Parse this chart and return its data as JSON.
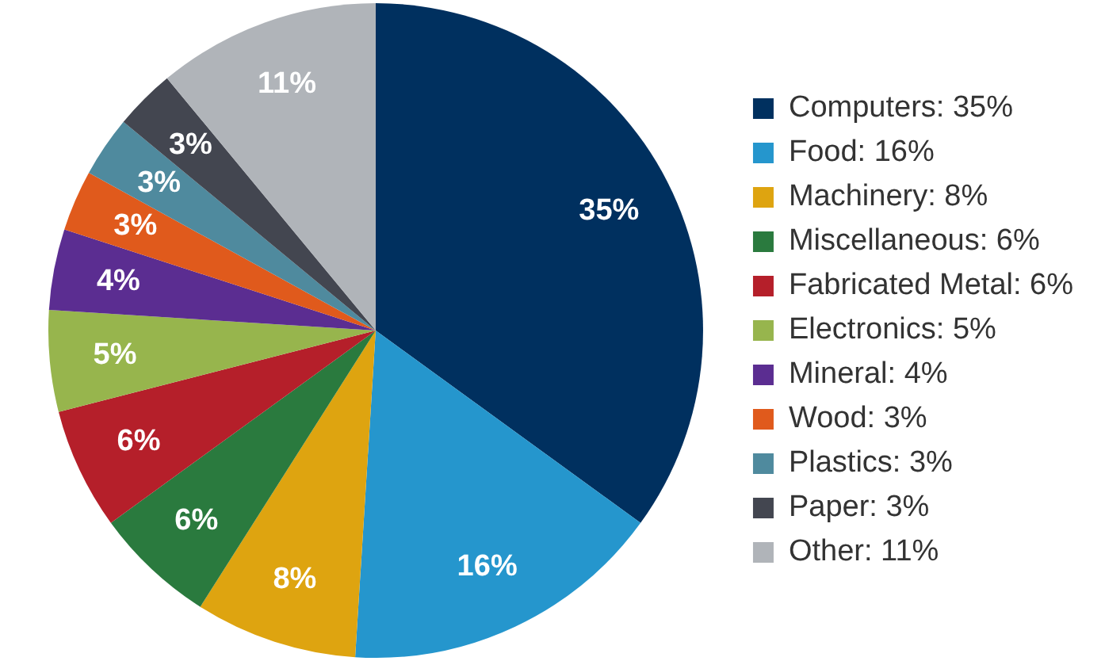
{
  "chart_data": {
    "type": "pie",
    "categories": [
      "Computers: 35%",
      "Food: 16%",
      "Machinery: 8%",
      "Miscellaneous: 6%",
      "Fabricated Metal: 6%",
      "Electronics: 5%",
      "Mineral: 4%",
      "Wood: 3%",
      "Plastics: 3%",
      "Paper: 3%",
      "Other: 11%"
    ],
    "values": [
      35,
      16,
      8,
      6,
      6,
      5,
      4,
      3,
      3,
      3,
      11
    ],
    "value_labels": [
      "35%",
      "16%",
      "8%",
      "6%",
      "6%",
      "5%",
      "4%",
      "3%",
      "3%",
      "3%",
      "11%"
    ],
    "colors": [
      "#00305f",
      "#2596cd",
      "#dea410",
      "#2a7a3e",
      "#b51f2a",
      "#97b54d",
      "#5b2d91",
      "#e05a1c",
      "#4f8a9e",
      "#434650",
      "#b0b4b9"
    ],
    "legend": "right"
  }
}
